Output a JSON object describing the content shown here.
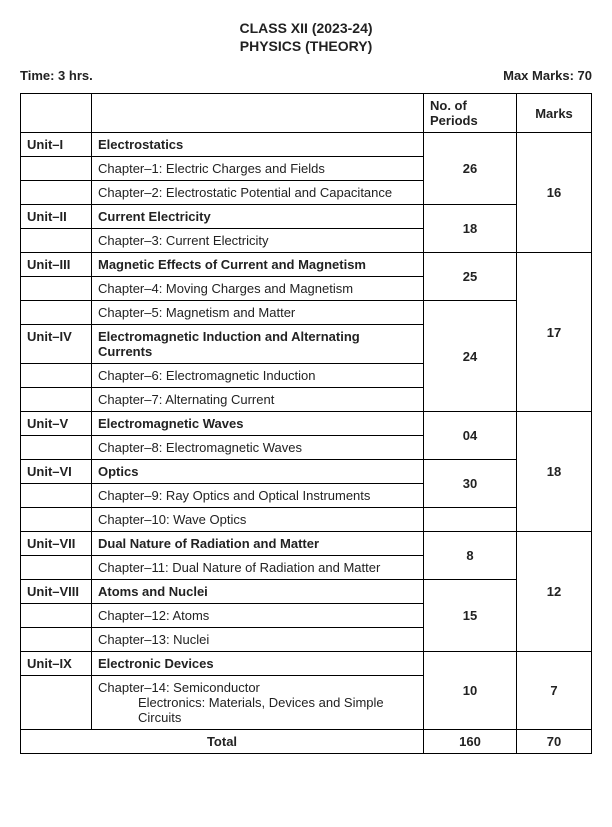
{
  "header": {
    "class_line": "CLASS XII (2023-24)",
    "subject_line": "PHYSICS (THEORY)"
  },
  "meta": {
    "time_label": "Time: 3 hrs.",
    "marks_label": "Max Marks: 70"
  },
  "columns": {
    "periods": "No. of Periods",
    "marks": "Marks"
  },
  "units": {
    "u1": {
      "id": "Unit–I",
      "title": "Electrostatics",
      "chapters": [
        "Chapter–1: Electric Charges and Fields",
        "Chapter–2: Electrostatic Potential and Capacitance"
      ],
      "periods": "26"
    },
    "u2": {
      "id": "Unit–II",
      "title": "Current Electricity",
      "chapters": [
        "Chapter–3: Current Electricity"
      ],
      "periods": "18"
    },
    "g1_marks": "16",
    "u3": {
      "id": "Unit–III",
      "title": "Magnetic Effects of Current and Magnetism",
      "chapters": [
        "Chapter–4: Moving Charges and Magnetism",
        "Chapter–5: Magnetism and Matter"
      ],
      "periods": "25"
    },
    "u4": {
      "id": "Unit–IV",
      "title": "Electromagnetic Induction and Alternating Currents",
      "chapters": [
        "Chapter–6: Electromagnetic Induction",
        "Chapter–7: Alternating Current"
      ],
      "periods": "24"
    },
    "g2_marks": "17",
    "u5": {
      "id": "Unit–V",
      "title": "Electromagnetic Waves",
      "chapters": [
        "Chapter–8: Electromagnetic Waves"
      ],
      "periods": "04"
    },
    "u6": {
      "id": "Unit–VI",
      "title": "Optics",
      "chapters": [
        "Chapter–9: Ray Optics and Optical Instruments",
        "Chapter–10: Wave Optics"
      ],
      "periods": "30"
    },
    "g3_marks": "18",
    "u7": {
      "id": "Unit–VII",
      "title": "Dual Nature of Radiation and Matter",
      "chapters": [
        "Chapter–11: Dual Nature of Radiation and Matter"
      ],
      "periods": "8"
    },
    "u8": {
      "id": "Unit–VIII",
      "title": "Atoms and Nuclei",
      "chapters": [
        "Chapter–12: Atoms",
        "Chapter–13: Nuclei"
      ],
      "periods": "15"
    },
    "g4_marks": "12",
    "u9": {
      "id": "Unit–IX",
      "title": "Electronic Devices",
      "chapter_main": "Chapter–14: Semiconductor",
      "chapter_sub": "Electronics: Materials, Devices and Simple Circuits",
      "periods": "10"
    },
    "g5_marks": "7"
  },
  "totals": {
    "label": "Total",
    "periods": "160",
    "marks": "70"
  }
}
